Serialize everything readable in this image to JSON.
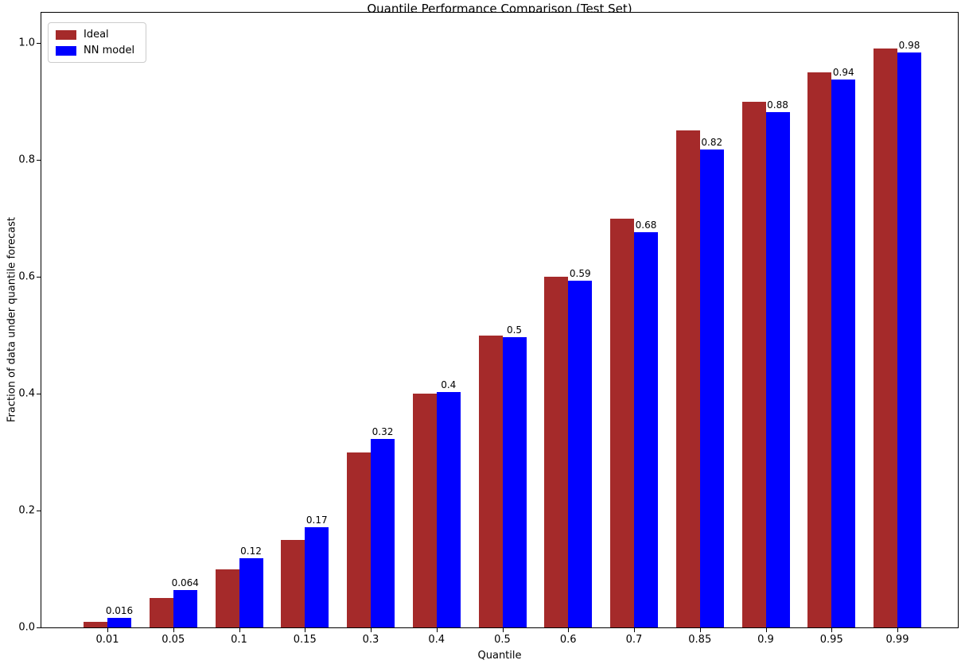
{
  "chart_data": {
    "type": "bar",
    "title": "Quantile Performance Comparison (Test Set)",
    "xlabel": "Quantile",
    "ylabel": "Fraction of data under quantile forecast",
    "categories": [
      "0.01",
      "0.05",
      "0.1",
      "0.15",
      "0.3",
      "0.4",
      "0.5",
      "0.6",
      "0.7",
      "0.85",
      "0.9",
      "0.95",
      "0.99"
    ],
    "series": [
      {
        "name": "Ideal",
        "color": "#A52A2A",
        "values": [
          0.01,
          0.05,
          0.1,
          0.15,
          0.3,
          0.4,
          0.5,
          0.6,
          0.7,
          0.85,
          0.9,
          0.95,
          0.99
        ]
      },
      {
        "name": "NN model",
        "color": "#0000FF",
        "values": [
          0.016,
          0.064,
          0.118,
          0.172,
          0.322,
          0.403,
          0.497,
          0.593,
          0.676,
          0.818,
          0.882,
          0.938,
          0.984
        ],
        "labels": [
          "0.016",
          "0.064",
          "0.12",
          "0.17",
          "0.32",
          "0.4",
          "0.5",
          "0.59",
          "0.68",
          "0.82",
          "0.88",
          "0.94",
          "0.98"
        ]
      }
    ],
    "bar_labels_on": "NN model",
    "yticks": [
      0.0,
      0.2,
      0.4,
      0.6,
      0.8,
      1.0
    ],
    "ytick_labels": [
      "0.0",
      "0.2",
      "0.4",
      "0.6",
      "0.8",
      "1.0"
    ],
    "ylim": [
      0,
      1.052
    ],
    "grid": false,
    "legend_position": "upper left"
  }
}
